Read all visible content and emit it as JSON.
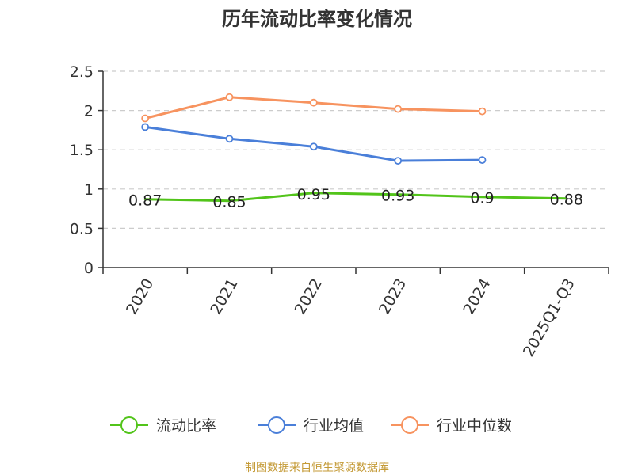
{
  "chart_data": {
    "type": "line",
    "title": "历年流动比率变化情况",
    "categories": [
      "2020",
      "2021",
      "2022",
      "2023",
      "2024",
      "2025Q1-Q3"
    ],
    "ylim": [
      0,
      2.5
    ],
    "yticks": [
      "0",
      "0.5",
      "1",
      "1.5",
      "2",
      "2.5"
    ],
    "ytick_values": [
      0,
      0.5,
      1,
      1.5,
      2,
      2.5
    ],
    "grid": true,
    "legend_position": "bottom",
    "series": [
      {
        "name": "流动比率",
        "color": "#52c41a",
        "values": [
          0.87,
          0.85,
          0.95,
          0.93,
          0.9,
          0.88
        ],
        "labels": [
          "0.87",
          "0.85",
          "0.95",
          "0.93",
          "0.9",
          "0.88"
        ],
        "show_markers": false
      },
      {
        "name": "行业均值",
        "color": "#4a7fd9",
        "values": [
          1.79,
          1.64,
          1.54,
          1.36,
          1.37,
          null
        ],
        "show_markers": true
      },
      {
        "name": "行业中位数",
        "color": "#f7935f",
        "values": [
          1.9,
          2.17,
          2.1,
          2.02,
          1.99,
          null
        ],
        "show_markers": true
      }
    ]
  },
  "source": "制图数据来自恒生聚源数据库"
}
